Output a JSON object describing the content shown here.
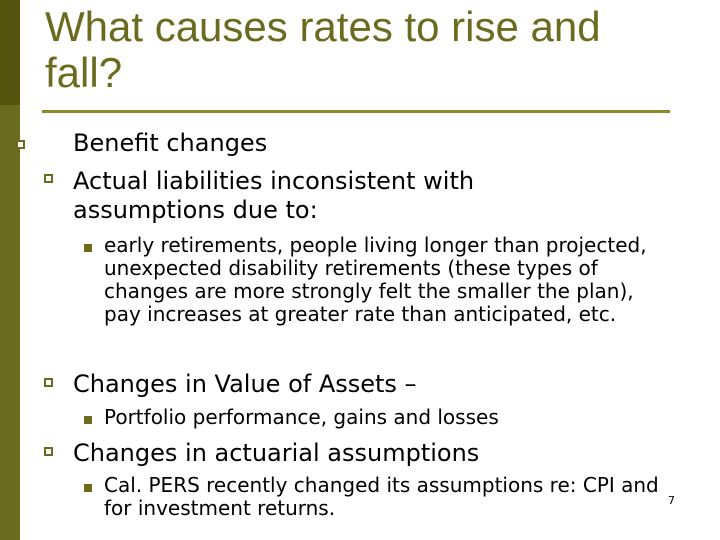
{
  "slide": {
    "title": "What causes rates to rise and fall?",
    "page_number": "7",
    "bullets": [
      {
        "text": "Benefit changes"
      },
      {
        "text": "Actual liabilities inconsistent with assumptions due to:",
        "sub": [
          "early retirements, people living longer than projected, unexpected disability retirements (these types of changes are more strongly felt the smaller the plan), pay increases at greater rate than anticipated, etc."
        ]
      },
      {
        "text": "Changes in Value of Assets –",
        "sub": [
          "Portfolio performance, gains and losses"
        ]
      },
      {
        "text": "Changes in actuarial assumptions",
        "sub": [
          "Cal. PERS recently changed its assumptions re: CPI and for investment returns."
        ]
      }
    ]
  }
}
